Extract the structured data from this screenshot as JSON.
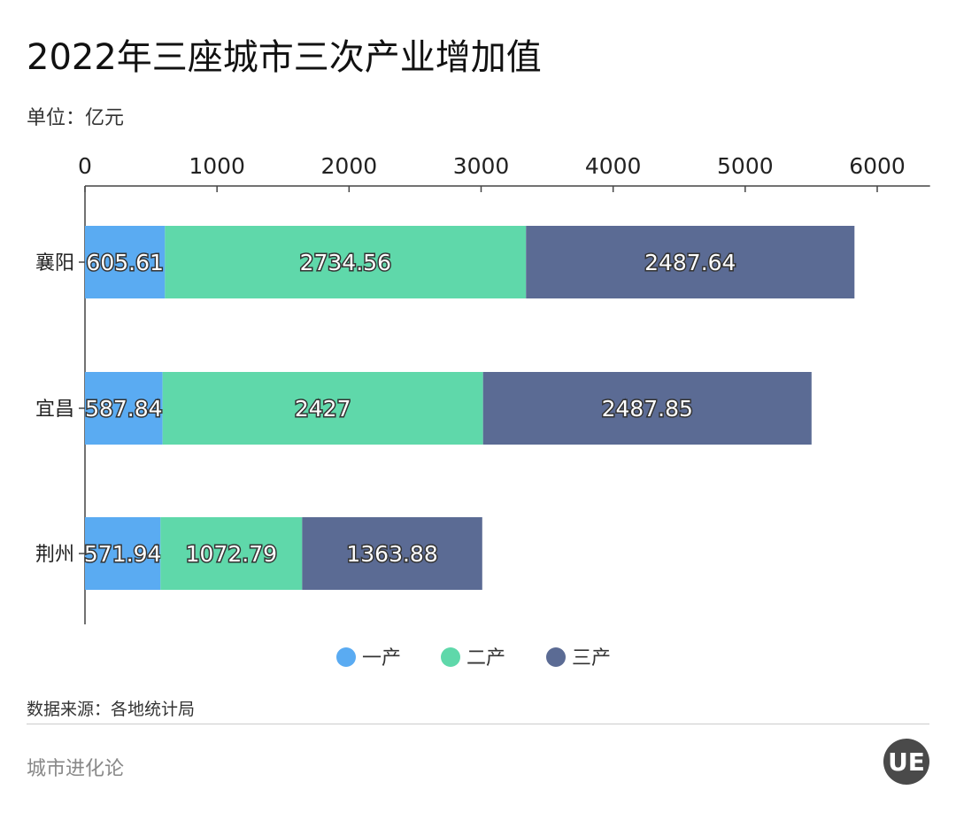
{
  "chart_data": {
    "type": "bar",
    "orientation": "horizontal",
    "stacked": true,
    "title": "2022年三座城市三次产业增加值",
    "unit": "单位：亿元",
    "categories": [
      "襄阳",
      "宜昌",
      "荆州"
    ],
    "series": [
      {
        "name": "一产",
        "color": "#5aabf2",
        "values": [
          605.61,
          587.84,
          571.94
        ],
        "labels": [
          "605.61",
          "587.84",
          "571.94"
        ]
      },
      {
        "name": "二产",
        "color": "#5fd8aa",
        "values": [
          2734.56,
          2427,
          1072.79
        ],
        "labels": [
          "2734.56",
          "2427",
          "1072.79"
        ]
      },
      {
        "name": "三产",
        "color": "#5b6b94",
        "values": [
          2487.64,
          2487.85,
          1363.88
        ],
        "labels": [
          "2487.64",
          "2487.85",
          "1363.88"
        ]
      }
    ],
    "xticks": [
      "0",
      "1000",
      "2000",
      "3000",
      "4000",
      "5000",
      "6000"
    ],
    "xlim": [
      0,
      6400
    ],
    "axis_position": "top",
    "legend_position": "bottom",
    "grid": false
  },
  "footer": {
    "source": "数据来源：各地统计局",
    "brand": "城市进化论",
    "logo_text": "UE"
  }
}
